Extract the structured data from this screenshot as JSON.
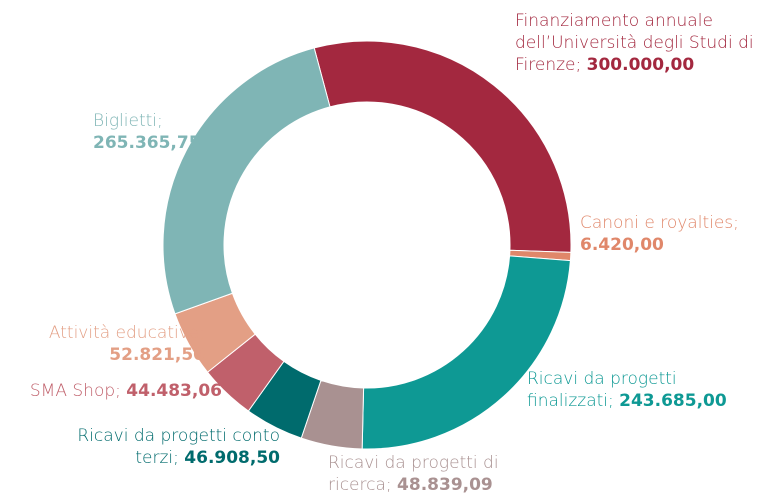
{
  "chart_data": {
    "type": "pie",
    "categories": [
      "Finanziamento annuale dell’Università degli Studi di Firenze;",
      "Canoni e royalties;",
      "Ricavi da progetti finalizzati;",
      "Ricavi da progetti di ricerca;",
      "Ricavi da progetti conto terzi;",
      "SMA Shop;",
      "Attività educative;",
      "Biglietti;"
    ],
    "values": [
      300000,
      6420,
      243685,
      48839.09,
      46908.5,
      44483.06,
      52821.5,
      265365.75
    ],
    "value_labels": [
      "300.000,00",
      "6.420,00",
      "243.685,00",
      "48.839,09",
      "46.908,50",
      "44.483,06",
      "52.821,50",
      "265.365,75"
    ],
    "colors": [
      "#a3283f",
      "#e0876a",
      "#0e9994",
      "#a99191",
      "#006b6d",
      "#c0606b",
      "#e39f85",
      "#7fb5b5"
    ]
  }
}
